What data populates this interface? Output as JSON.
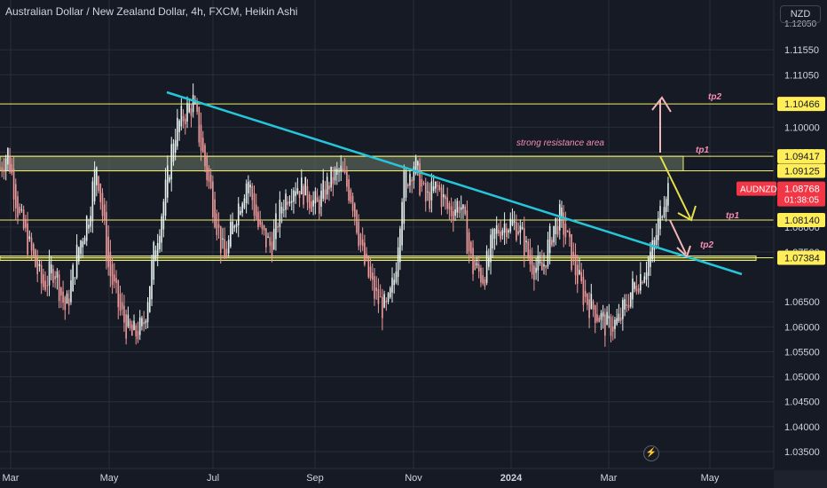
{
  "header": {
    "title": "Australian Dollar / New Zealand Dollar, 4h, FXCM, Heikin Ashi",
    "currency_button": "NZD"
  },
  "colors": {
    "background": "#161a25",
    "grid": "#2a2e39",
    "candle_up": "#e6f1ee",
    "candle_down": "#ef9a9a",
    "level_line": "#f0f06a",
    "trendline": "#26c6da",
    "zone_fill": "#6e7a66",
    "arrow_yellow": "#e6e04a",
    "arrow_pink": "#f4b6b6",
    "annotation_text": "#f48fb1",
    "symbol_badge": "#f23645"
  },
  "chart_data": {
    "type": "candlestick",
    "chart_style": "Heikin Ashi",
    "timeframe": "4h",
    "source": "FXCM",
    "y_axis": {
      "labels": [
        "1.11550",
        "1.11050",
        "1.10000",
        "1.09500",
        "1.08000",
        "1.07500",
        "1.06500",
        "1.06000",
        "1.05500",
        "1.05000",
        "1.04500",
        "1.04000",
        "1.03500"
      ],
      "partial_top_label": "1.12050",
      "ylim": [
        1.0335,
        1.1225
      ]
    },
    "x_axis": {
      "labels": [
        "Mar",
        "May",
        "Jul",
        "Sep",
        "Nov",
        "2024",
        "Mar",
        "May"
      ]
    },
    "price_labels": [
      {
        "value": "1.10466",
        "style": "yellow"
      },
      {
        "value": "1.09417",
        "style": "yellow"
      },
      {
        "value": "1.09125",
        "style": "yellow"
      },
      {
        "value": "1.08140",
        "style": "yellow"
      },
      {
        "value": "1.07384",
        "style": "yellow"
      },
      {
        "value": "1.08768",
        "style": "current"
      }
    ],
    "symbol_badge": {
      "symbol": "AUDNZD",
      "price": "1.08768",
      "countdown": "01:38:05"
    },
    "horizontal_levels": [
      1.10466,
      1.09417,
      1.09125,
      1.0814,
      1.07384
    ],
    "zones": [
      {
        "from": 1.09125,
        "to": 1.09417
      },
      {
        "from": 1.0733,
        "to": 1.0742
      }
    ],
    "trendline": {
      "from": {
        "date": "2023-06-08",
        "price": 1.108
      },
      "to": {
        "date": "2024-04-28",
        "price": 1.0705
      }
    },
    "price_path": [
      {
        "t": 0,
        "p": 1.092
      },
      {
        "t": 0.01,
        "p": 1.095
      },
      {
        "t": 0.025,
        "p": 1.082
      },
      {
        "t": 0.04,
        "p": 1.075
      },
      {
        "t": 0.055,
        "p": 1.068
      },
      {
        "t": 0.07,
        "p": 1.072
      },
      {
        "t": 0.085,
        "p": 1.063
      },
      {
        "t": 0.1,
        "p": 1.075
      },
      {
        "t": 0.115,
        "p": 1.083
      },
      {
        "t": 0.125,
        "p": 1.093
      },
      {
        "t": 0.14,
        "p": 1.072
      },
      {
        "t": 0.155,
        "p": 1.063
      },
      {
        "t": 0.17,
        "p": 1.058
      },
      {
        "t": 0.185,
        "p": 1.06
      },
      {
        "t": 0.2,
        "p": 1.076
      },
      {
        "t": 0.215,
        "p": 1.088
      },
      {
        "t": 0.225,
        "p": 1.099
      },
      {
        "t": 0.24,
        "p": 1.103
      },
      {
        "t": 0.25,
        "p": 1.105
      },
      {
        "t": 0.26,
        "p": 1.096
      },
      {
        "t": 0.275,
        "p": 1.085
      },
      {
        "t": 0.29,
        "p": 1.073
      },
      {
        "t": 0.305,
        "p": 1.083
      },
      {
        "t": 0.32,
        "p": 1.09
      },
      {
        "t": 0.335,
        "p": 1.079
      },
      {
        "t": 0.35,
        "p": 1.076
      },
      {
        "t": 0.365,
        "p": 1.085
      },
      {
        "t": 0.38,
        "p": 1.089
      },
      {
        "t": 0.395,
        "p": 1.087
      },
      {
        "t": 0.41,
        "p": 1.084
      },
      {
        "t": 0.425,
        "p": 1.089
      },
      {
        "t": 0.44,
        "p": 1.091
      },
      {
        "t": 0.455,
        "p": 1.086
      },
      {
        "t": 0.47,
        "p": 1.073
      },
      {
        "t": 0.485,
        "p": 1.066
      },
      {
        "t": 0.5,
        "p": 1.063
      },
      {
        "t": 0.51,
        "p": 1.07
      },
      {
        "t": 0.52,
        "p": 1.088
      },
      {
        "t": 0.535,
        "p": 1.093
      },
      {
        "t": 0.55,
        "p": 1.085
      },
      {
        "t": 0.565,
        "p": 1.088
      },
      {
        "t": 0.58,
        "p": 1.083
      },
      {
        "t": 0.595,
        "p": 1.085
      },
      {
        "t": 0.61,
        "p": 1.072
      },
      {
        "t": 0.625,
        "p": 1.07
      },
      {
        "t": 0.64,
        "p": 1.079
      },
      {
        "t": 0.655,
        "p": 1.081
      },
      {
        "t": 0.67,
        "p": 1.08
      },
      {
        "t": 0.685,
        "p": 1.073
      },
      {
        "t": 0.7,
        "p": 1.071
      },
      {
        "t": 0.715,
        "p": 1.08
      },
      {
        "t": 0.725,
        "p": 1.082
      },
      {
        "t": 0.74,
        "p": 1.073
      },
      {
        "t": 0.755,
        "p": 1.066
      },
      {
        "t": 0.77,
        "p": 1.063
      },
      {
        "t": 0.785,
        "p": 1.06
      },
      {
        "t": 0.8,
        "p": 1.061
      },
      {
        "t": 0.815,
        "p": 1.067
      },
      {
        "t": 0.83,
        "p": 1.071
      },
      {
        "t": 0.845,
        "p": 1.076
      },
      {
        "t": 0.86,
        "p": 1.088
      },
      {
        "t": 0.866,
        "p": 1.0877
      }
    ],
    "annotations": [
      {
        "text": "strong resistance area"
      },
      {
        "text": "tp2"
      },
      {
        "text": "tp1"
      },
      {
        "text": "tp1"
      },
      {
        "text": "tp2"
      }
    ],
    "arrows": [
      {
        "kind": "bullish",
        "color": "arrow_pink",
        "target": "tp2 1.10466"
      },
      {
        "kind": "bearish",
        "color": "arrow_yellow",
        "target": "tp1 1.08140"
      },
      {
        "kind": "bearish",
        "color": "arrow_pink",
        "target": "tp2 1.07384"
      }
    ]
  }
}
